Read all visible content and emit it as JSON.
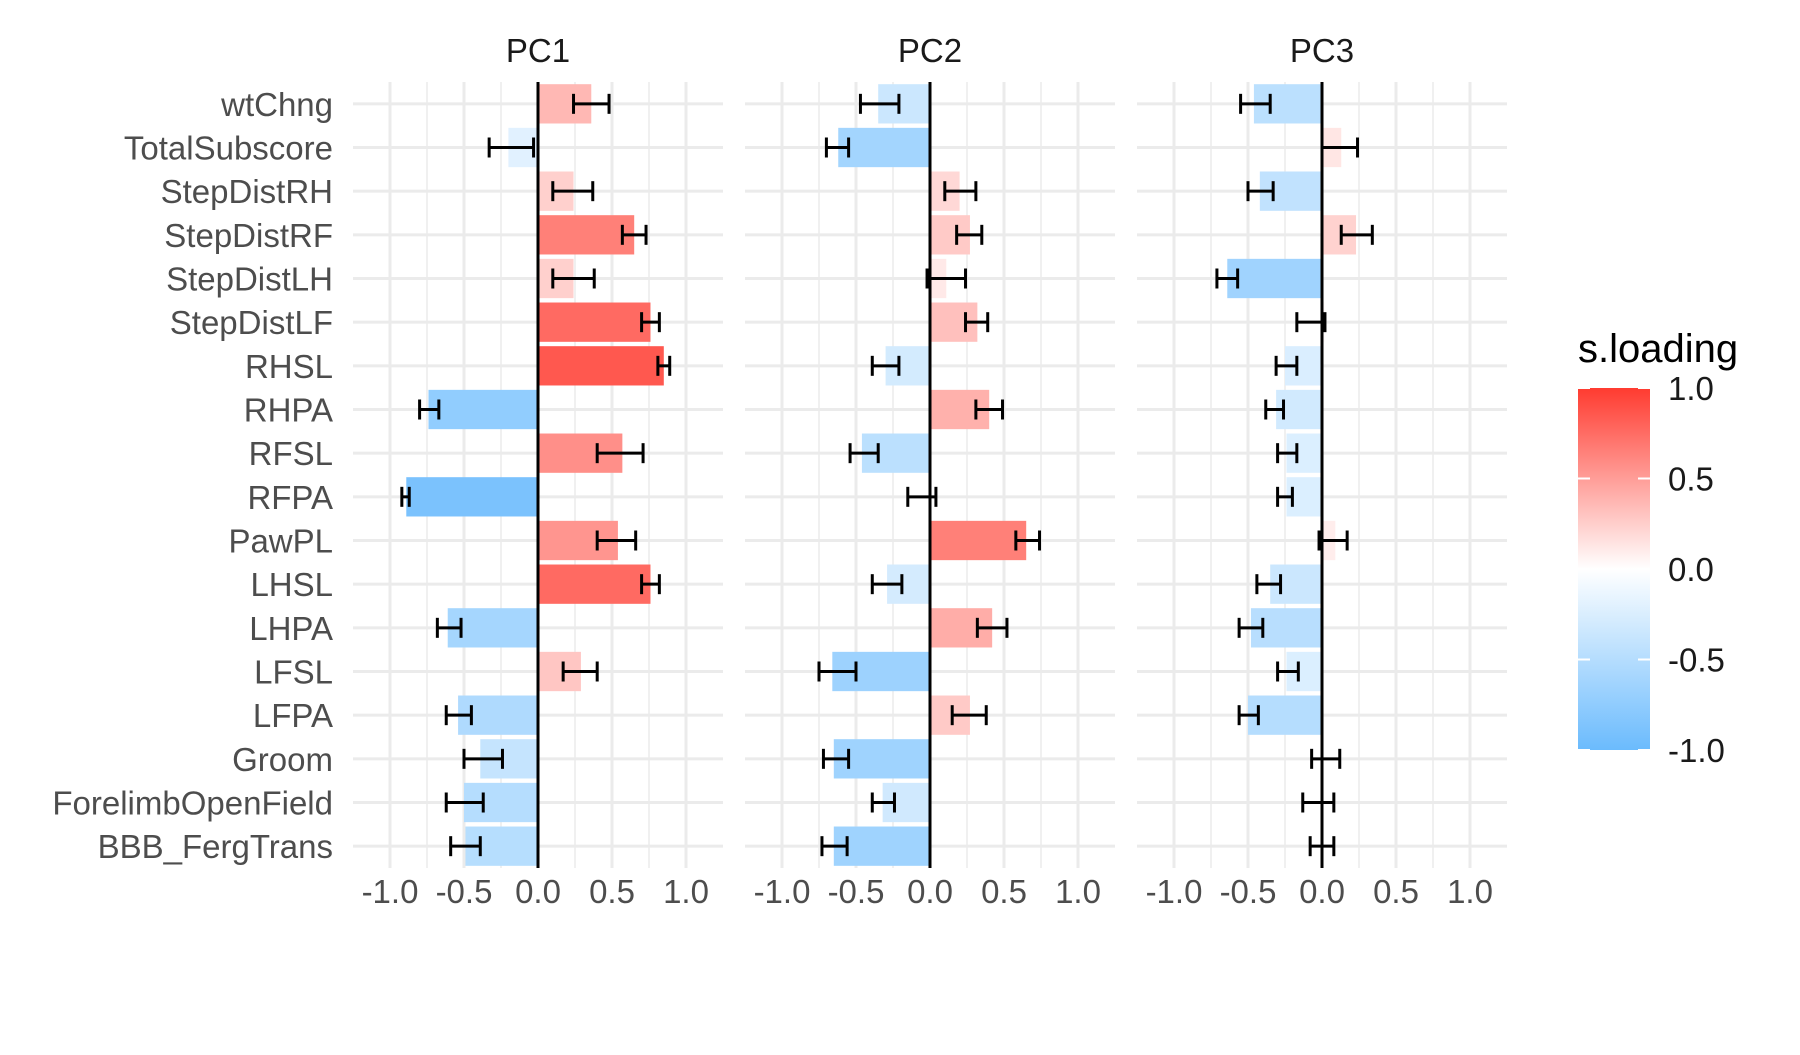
{
  "chart_data": {
    "type": "bar",
    "orientation": "horizontal",
    "facets": [
      "PC1",
      "PC2",
      "PC3"
    ],
    "categories": [
      "wtChng",
      "TotalSubscore",
      "StepDistRH",
      "StepDistRF",
      "StepDistLH",
      "StepDistLF",
      "RHSL",
      "RHPA",
      "RFSL",
      "RFPA",
      "PawPL",
      "LHSL",
      "LHPA",
      "LFSL",
      "LFPA",
      "Groom",
      "ForelimbOpenField",
      "BBB_FergTrans"
    ],
    "series": [
      {
        "name": "PC1",
        "values": [
          0.36,
          -0.2,
          0.24,
          0.65,
          0.24,
          0.76,
          0.85,
          -0.74,
          0.57,
          -0.89,
          0.54,
          0.76,
          -0.61,
          0.29,
          -0.54,
          -0.39,
          -0.5,
          -0.49
        ],
        "err_low": [
          0.24,
          -0.33,
          0.1,
          0.57,
          0.1,
          0.7,
          0.81,
          -0.8,
          0.4,
          -0.92,
          0.4,
          0.7,
          -0.68,
          0.17,
          -0.62,
          -0.5,
          -0.62,
          -0.59
        ],
        "err_high": [
          0.48,
          -0.03,
          0.37,
          0.73,
          0.38,
          0.82,
          0.89,
          -0.67,
          0.71,
          -0.87,
          0.66,
          0.82,
          -0.52,
          0.4,
          -0.45,
          -0.24,
          -0.37,
          -0.39
        ]
      },
      {
        "name": "PC2",
        "values": [
          -0.35,
          -0.62,
          0.2,
          0.27,
          0.11,
          0.32,
          -0.3,
          0.4,
          -0.46,
          0.0,
          0.65,
          -0.29,
          0.42,
          -0.66,
          0.27,
          -0.65,
          -0.32,
          -0.65
        ],
        "err_low": [
          -0.47,
          -0.7,
          0.1,
          0.18,
          -0.02,
          0.24,
          -0.39,
          0.31,
          -0.54,
          -0.15,
          0.58,
          -0.39,
          0.32,
          -0.75,
          0.15,
          -0.72,
          -0.39,
          -0.73
        ],
        "err_high": [
          -0.21,
          -0.55,
          0.31,
          0.35,
          0.24,
          0.39,
          -0.21,
          0.49,
          -0.35,
          0.04,
          0.74,
          -0.19,
          0.52,
          -0.5,
          0.38,
          -0.55,
          -0.24,
          -0.56
        ]
      },
      {
        "name": "PC3",
        "values": [
          -0.46,
          0.13,
          -0.42,
          0.23,
          -0.64,
          0.02,
          -0.25,
          -0.31,
          -0.24,
          -0.24,
          0.09,
          -0.35,
          -0.48,
          -0.24,
          -0.5,
          0.0,
          0.0,
          0.0
        ],
        "err_low": [
          -0.55,
          0.0,
          -0.5,
          0.13,
          -0.71,
          -0.17,
          -0.31,
          -0.38,
          -0.3,
          -0.3,
          -0.02,
          -0.44,
          -0.56,
          -0.3,
          -0.56,
          -0.07,
          -0.13,
          -0.08
        ],
        "err_high": [
          -0.35,
          0.24,
          -0.33,
          0.34,
          -0.57,
          0.02,
          -0.17,
          -0.26,
          -0.17,
          -0.2,
          0.17,
          -0.28,
          -0.4,
          -0.16,
          -0.43,
          0.12,
          0.08,
          0.08
        ]
      }
    ],
    "xlim": [
      -1.25,
      1.25
    ],
    "xticks": [
      -1.0,
      -0.5,
      0.0,
      0.5,
      1.0
    ],
    "xtick_labels": [
      "-1.0",
      "-0.5",
      "0.0",
      "0.5",
      "1.0"
    ],
    "xlabel": "",
    "ylabel": "",
    "grid": true,
    "legend": {
      "title": "s.loading",
      "position": "right",
      "ticks": [
        1.0,
        0.5,
        0.0,
        -0.5,
        -1.0
      ],
      "tick_labels": [
        "1.0",
        "0.5",
        "0.0",
        "-0.5",
        "-1.0"
      ],
      "color_low": "#6bbbfd",
      "color_mid": "#ffffff",
      "color_high": "#ff3b30"
    }
  }
}
